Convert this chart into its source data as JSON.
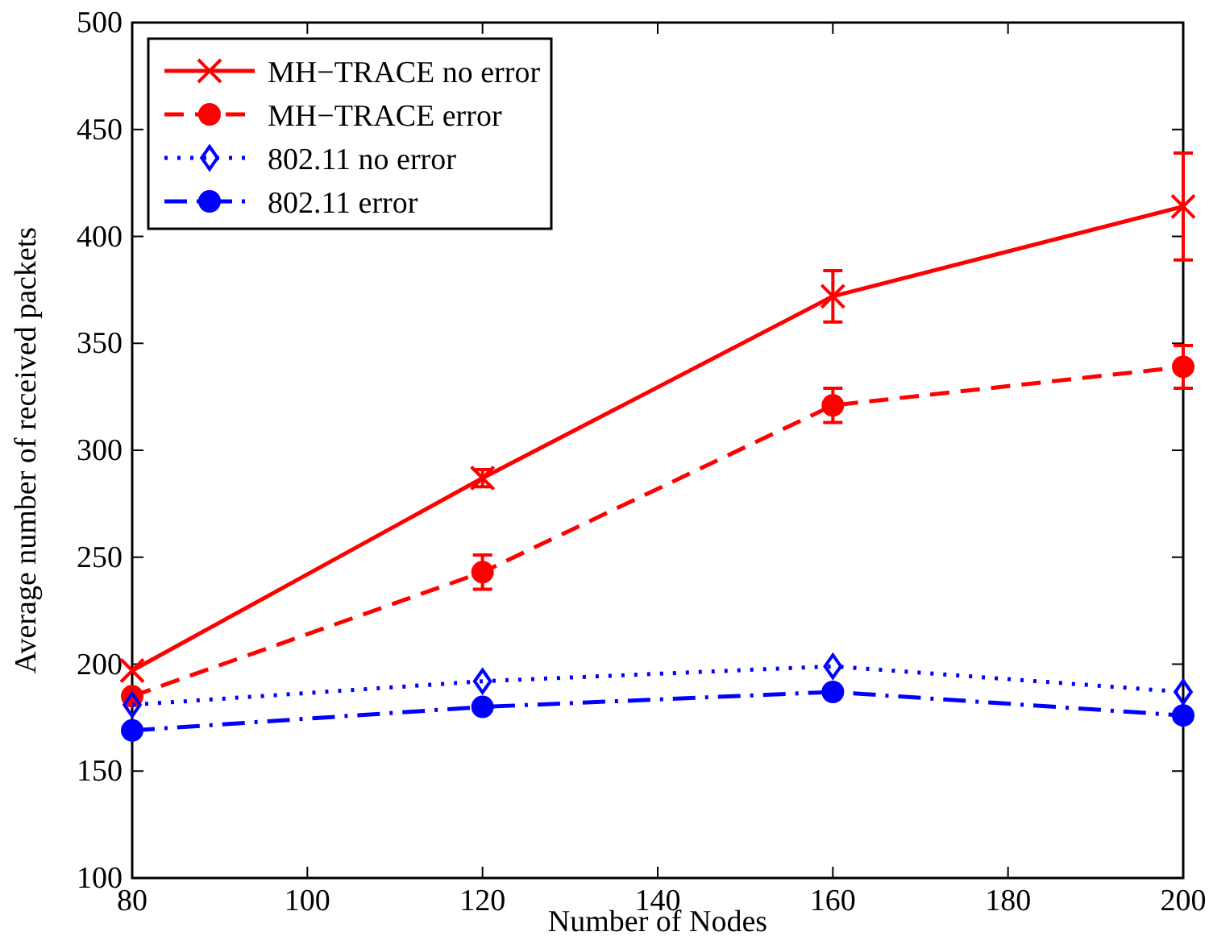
{
  "chart_data": {
    "type": "line",
    "xlabel": "Number of Nodes",
    "ylabel": "Average number of received packets",
    "x": [
      80,
      120,
      160,
      200
    ],
    "xlim": [
      80,
      200
    ],
    "xticks": [
      80,
      100,
      120,
      140,
      160,
      180,
      200
    ],
    "ylim": [
      100,
      500
    ],
    "yticks": [
      100,
      150,
      200,
      250,
      300,
      350,
      400,
      450,
      500
    ],
    "grid": false,
    "legend": "top left",
    "series": [
      {
        "name": "MH−TRACE no error",
        "color": "#ff0000",
        "values": [
          197,
          287,
          372,
          414
        ],
        "errors": [
          null,
          4,
          12,
          25
        ],
        "marker": "cross",
        "line_style": "solid"
      },
      {
        "name": "MH−TRACE error",
        "color": "#ff0000",
        "values": [
          185,
          243,
          321,
          339
        ],
        "errors": [
          null,
          8,
          8,
          10
        ],
        "marker": "circle",
        "line_style": "dashed"
      },
      {
        "name": "802.11 no error",
        "color": "#0000ff",
        "values": [
          181,
          192,
          199,
          187
        ],
        "marker": "diamond",
        "line_style": "dotted"
      },
      {
        "name": "802.11 error",
        "color": "#0000ff",
        "values": [
          169,
          180,
          187,
          176
        ],
        "marker": "circle",
        "line_style": "dashdot"
      }
    ]
  }
}
